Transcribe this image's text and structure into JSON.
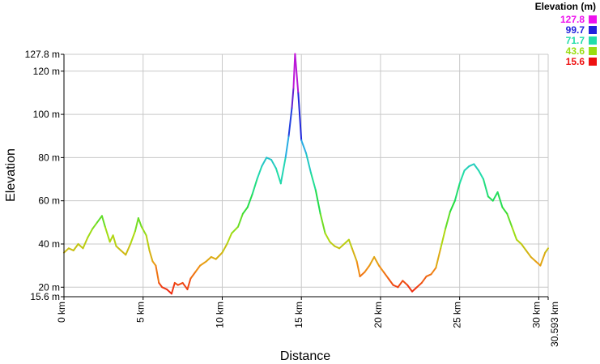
{
  "chart_data": {
    "type": "line",
    "xlabel": "Distance",
    "ylabel": "Elevation",
    "xlim": [
      0,
      30.593
    ],
    "ylim": [
      15.6,
      127.8
    ],
    "grid": true,
    "y_ticks": [
      {
        "value": 15.6,
        "label": "15.6 m"
      },
      {
        "value": 20,
        "label": "20 m"
      },
      {
        "value": 40,
        "label": "40 m"
      },
      {
        "value": 60,
        "label": "60 m"
      },
      {
        "value": 80,
        "label": "80 m"
      },
      {
        "value": 100,
        "label": "100 m"
      },
      {
        "value": 120,
        "label": "120 m"
      },
      {
        "value": 127.8,
        "label": "127.8 m"
      }
    ],
    "x_ticks": [
      {
        "value": 0,
        "label": "0 km"
      },
      {
        "value": 5,
        "label": "5 km"
      },
      {
        "value": 10,
        "label": "10 km"
      },
      {
        "value": 15,
        "label": "15 km"
      },
      {
        "value": 20,
        "label": "20 km"
      },
      {
        "value": 25,
        "label": "25 km"
      },
      {
        "value": 30,
        "label": "30 km"
      },
      {
        "value": 30.593,
        "label": "30.593 km"
      }
    ],
    "legend": {
      "title": "Elevation (m)",
      "placement": "top-right",
      "entries": [
        {
          "label": "127.8",
          "color": "#ee11ee"
        },
        {
          "label": "99.7",
          "color": "#2222dd"
        },
        {
          "label": "71.7",
          "color": "#22ddaa"
        },
        {
          "label": "43.6",
          "color": "#99dd11"
        },
        {
          "label": "15.6",
          "color": "#ee1111"
        }
      ]
    },
    "series": [
      {
        "x": [
          0.0,
          0.3,
          0.6,
          0.9,
          1.2,
          1.5,
          1.8,
          2.1,
          2.4,
          2.6,
          2.9,
          3.1,
          3.3,
          3.6,
          3.9,
          4.2,
          4.5,
          4.7,
          4.9,
          5.2,
          5.4,
          5.6,
          5.8,
          6.0,
          6.2,
          6.5,
          6.8,
          7.0,
          7.2,
          7.5,
          7.8,
          8.0,
          8.3,
          8.6,
          9.0,
          9.3,
          9.6,
          10.0,
          10.3,
          10.6,
          11.0,
          11.3,
          11.6,
          11.9,
          12.2,
          12.5,
          12.8,
          13.1,
          13.4,
          13.7,
          14.0,
          14.2,
          14.4,
          14.5,
          14.6,
          14.8,
          15.0,
          15.3,
          15.6,
          15.9,
          16.2,
          16.5,
          16.8,
          17.1,
          17.4,
          17.7,
          18.0,
          18.2,
          18.5,
          18.7,
          19.0,
          19.3,
          19.6,
          19.9,
          20.2,
          20.5,
          20.8,
          21.1,
          21.4,
          21.7,
          22.0,
          22.3,
          22.6,
          22.9,
          23.2,
          23.5,
          23.8,
          24.1,
          24.4,
          24.7,
          25.0,
          25.3,
          25.6,
          25.9,
          26.2,
          26.5,
          26.8,
          27.1,
          27.4,
          27.7,
          28.0,
          28.3,
          28.6,
          28.9,
          29.2,
          29.5,
          29.8,
          30.1,
          30.4,
          30.593
        ],
        "y": [
          36,
          38,
          37,
          40,
          38,
          43,
          47,
          50,
          53,
          48,
          41,
          44,
          39,
          37,
          35,
          40,
          46,
          52,
          48,
          44,
          37,
          32,
          30,
          22,
          20,
          19,
          17,
          22,
          21,
          22,
          19,
          24,
          27,
          30,
          32,
          34,
          33,
          36,
          40,
          45,
          48,
          54,
          57,
          63,
          70,
          76,
          80,
          79,
          75,
          68,
          80,
          90,
          103,
          112,
          128,
          110,
          88,
          82,
          73,
          65,
          54,
          45,
          41,
          39,
          38,
          40,
          42,
          38,
          32,
          25,
          27,
          30,
          34,
          30,
          27,
          24,
          21,
          20,
          23,
          21,
          18,
          20,
          22,
          25,
          26,
          29,
          38,
          47,
          55,
          60,
          68,
          74,
          76,
          77,
          74,
          70,
          62,
          60,
          64,
          57,
          54,
          48,
          42,
          40,
          37,
          34,
          32,
          30,
          36,
          38
        ]
      }
    ]
  }
}
